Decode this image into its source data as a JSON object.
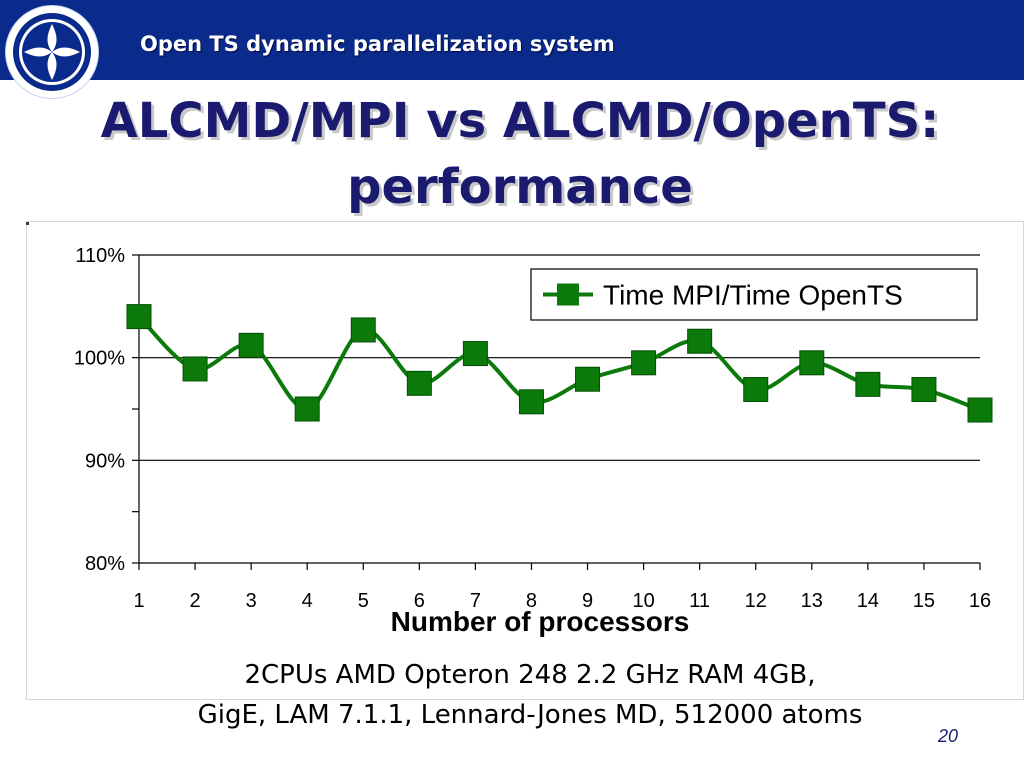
{
  "header": {
    "title": "Open TS dynamic parallelization system",
    "logo_icon": "diamond-cross-logo-icon",
    "bar_color": "#0a2a8c"
  },
  "slide": {
    "title_line1": "ALCMD/MPI vs ALCMD/OpenTS:",
    "title_line2": "performance",
    "title_color": "#1a1a6e",
    "page_number": "20"
  },
  "caption": {
    "line1": "2CPUs AMD Opteron 248 2.2 GHz RAM 4GB,",
    "line2": "GigE, LAM 7.1.1, Lennard-Jones MD, 512000 atoms"
  },
  "chart_data": {
    "type": "line",
    "title": "",
    "xlabel": "Number of processors",
    "ylabel": "",
    "categories": [
      "1",
      "2",
      "3",
      "4",
      "5",
      "6",
      "7",
      "8",
      "9",
      "10",
      "11",
      "12",
      "13",
      "14",
      "15",
      "16"
    ],
    "series": [
      {
        "name": "Time MPI/Time OpenTS",
        "color": "#0b7a0b",
        "marker": "square",
        "values": [
          104.0,
          98.9,
          101.2,
          95.0,
          102.7,
          97.5,
          100.4,
          95.7,
          97.9,
          99.5,
          101.6,
          96.9,
          99.5,
          97.4,
          96.9,
          94.9
        ]
      }
    ],
    "ylim": [
      80,
      110
    ],
    "yticks": [
      80,
      90,
      100,
      110
    ],
    "ytick_labels": [
      "80%",
      "90%",
      "100%",
      "110%"
    ],
    "y_minor_ticks": [
      85,
      95,
      105
    ],
    "grid": "major horizontal",
    "legend": "top-right"
  }
}
